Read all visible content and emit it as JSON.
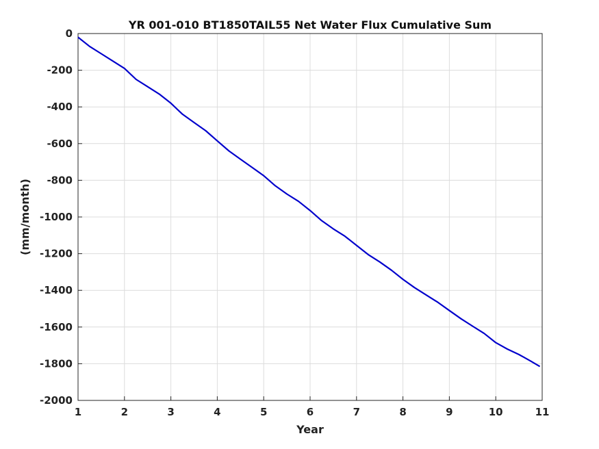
{
  "chart_data": {
    "type": "line",
    "title": "YR 001-010 BT1850TAIL55 Net Water Flux Cumulative Sum",
    "xlabel": "Year",
    "ylabel": "(mm/month)",
    "xlim": [
      1,
      11
    ],
    "ylim": [
      -2000,
      0
    ],
    "xticks": [
      1,
      2,
      3,
      4,
      5,
      6,
      7,
      8,
      9,
      10,
      11
    ],
    "yticks": [
      0,
      -200,
      -400,
      -600,
      -800,
      -1000,
      -1200,
      -1400,
      -1600,
      -1800,
      -2000
    ],
    "grid": true,
    "legend": "none",
    "colors": {
      "series": "#0000cc"
    },
    "series": [
      {
        "x": [
          1.0,
          1.25,
          1.5,
          1.75,
          2.0,
          2.25,
          2.5,
          2.75,
          3.0,
          3.25,
          3.5,
          3.75,
          4.0,
          4.25,
          4.5,
          4.75,
          5.0,
          5.25,
          5.5,
          5.75,
          6.0,
          6.25,
          6.5,
          6.75,
          7.0,
          7.25,
          7.5,
          7.75,
          8.0,
          8.25,
          8.5,
          8.75,
          9.0,
          9.25,
          9.5,
          9.75,
          10.0,
          10.25,
          10.5,
          10.75,
          10.95
        ],
        "y": [
          -20,
          -70,
          -110,
          -150,
          -190,
          -250,
          -290,
          -330,
          -380,
          -440,
          -485,
          -530,
          -585,
          -640,
          -685,
          -730,
          -775,
          -830,
          -875,
          -915,
          -965,
          -1020,
          -1065,
          -1105,
          -1155,
          -1205,
          -1245,
          -1290,
          -1340,
          -1385,
          -1425,
          -1465,
          -1510,
          -1555,
          -1595,
          -1635,
          -1685,
          -1720,
          -1750,
          -1785,
          -1815
        ]
      }
    ]
  }
}
